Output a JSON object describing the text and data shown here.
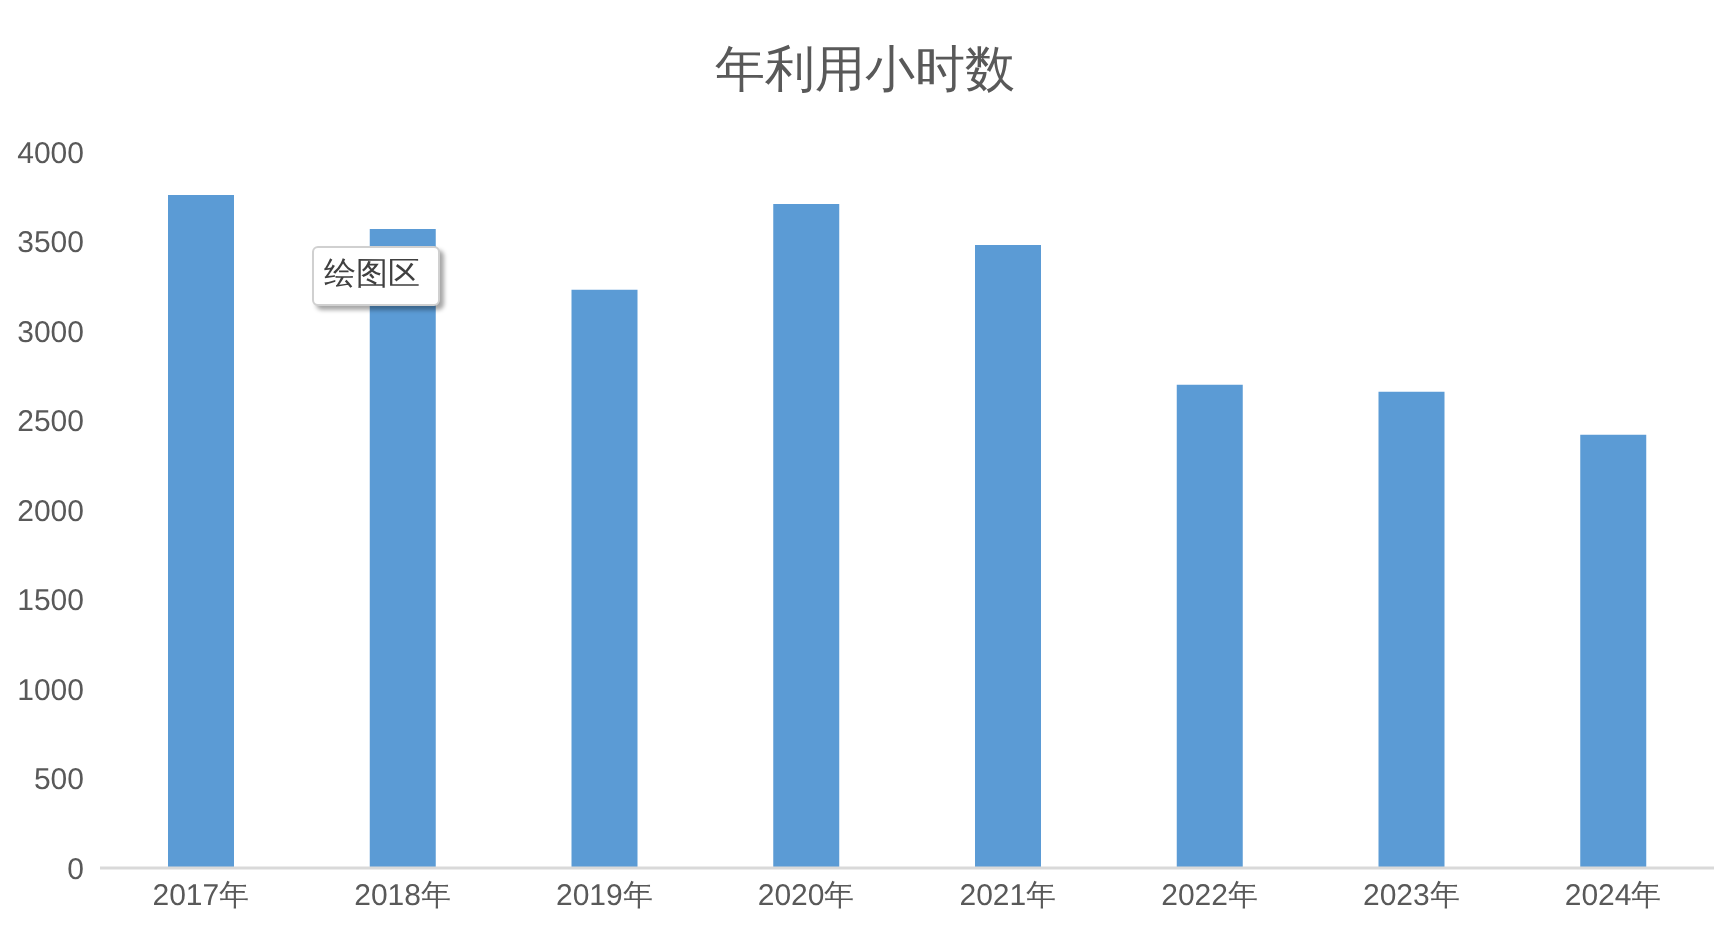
{
  "chart_data": {
    "type": "bar",
    "title": "年利用小时数",
    "categories": [
      "2017年",
      "2018年",
      "2019年",
      "2020年",
      "2021年",
      "2022年",
      "2023年",
      "2024年"
    ],
    "values": [
      3760,
      3570,
      3230,
      3710,
      3480,
      2700,
      2660,
      2420
    ],
    "color": "#5b9bd5",
    "ylim": [
      0,
      4000
    ],
    "yticks": [
      0,
      500,
      1000,
      1500,
      2000,
      2500,
      3000,
      3500,
      4000
    ],
    "annotations": [
      "绘图区"
    ]
  }
}
